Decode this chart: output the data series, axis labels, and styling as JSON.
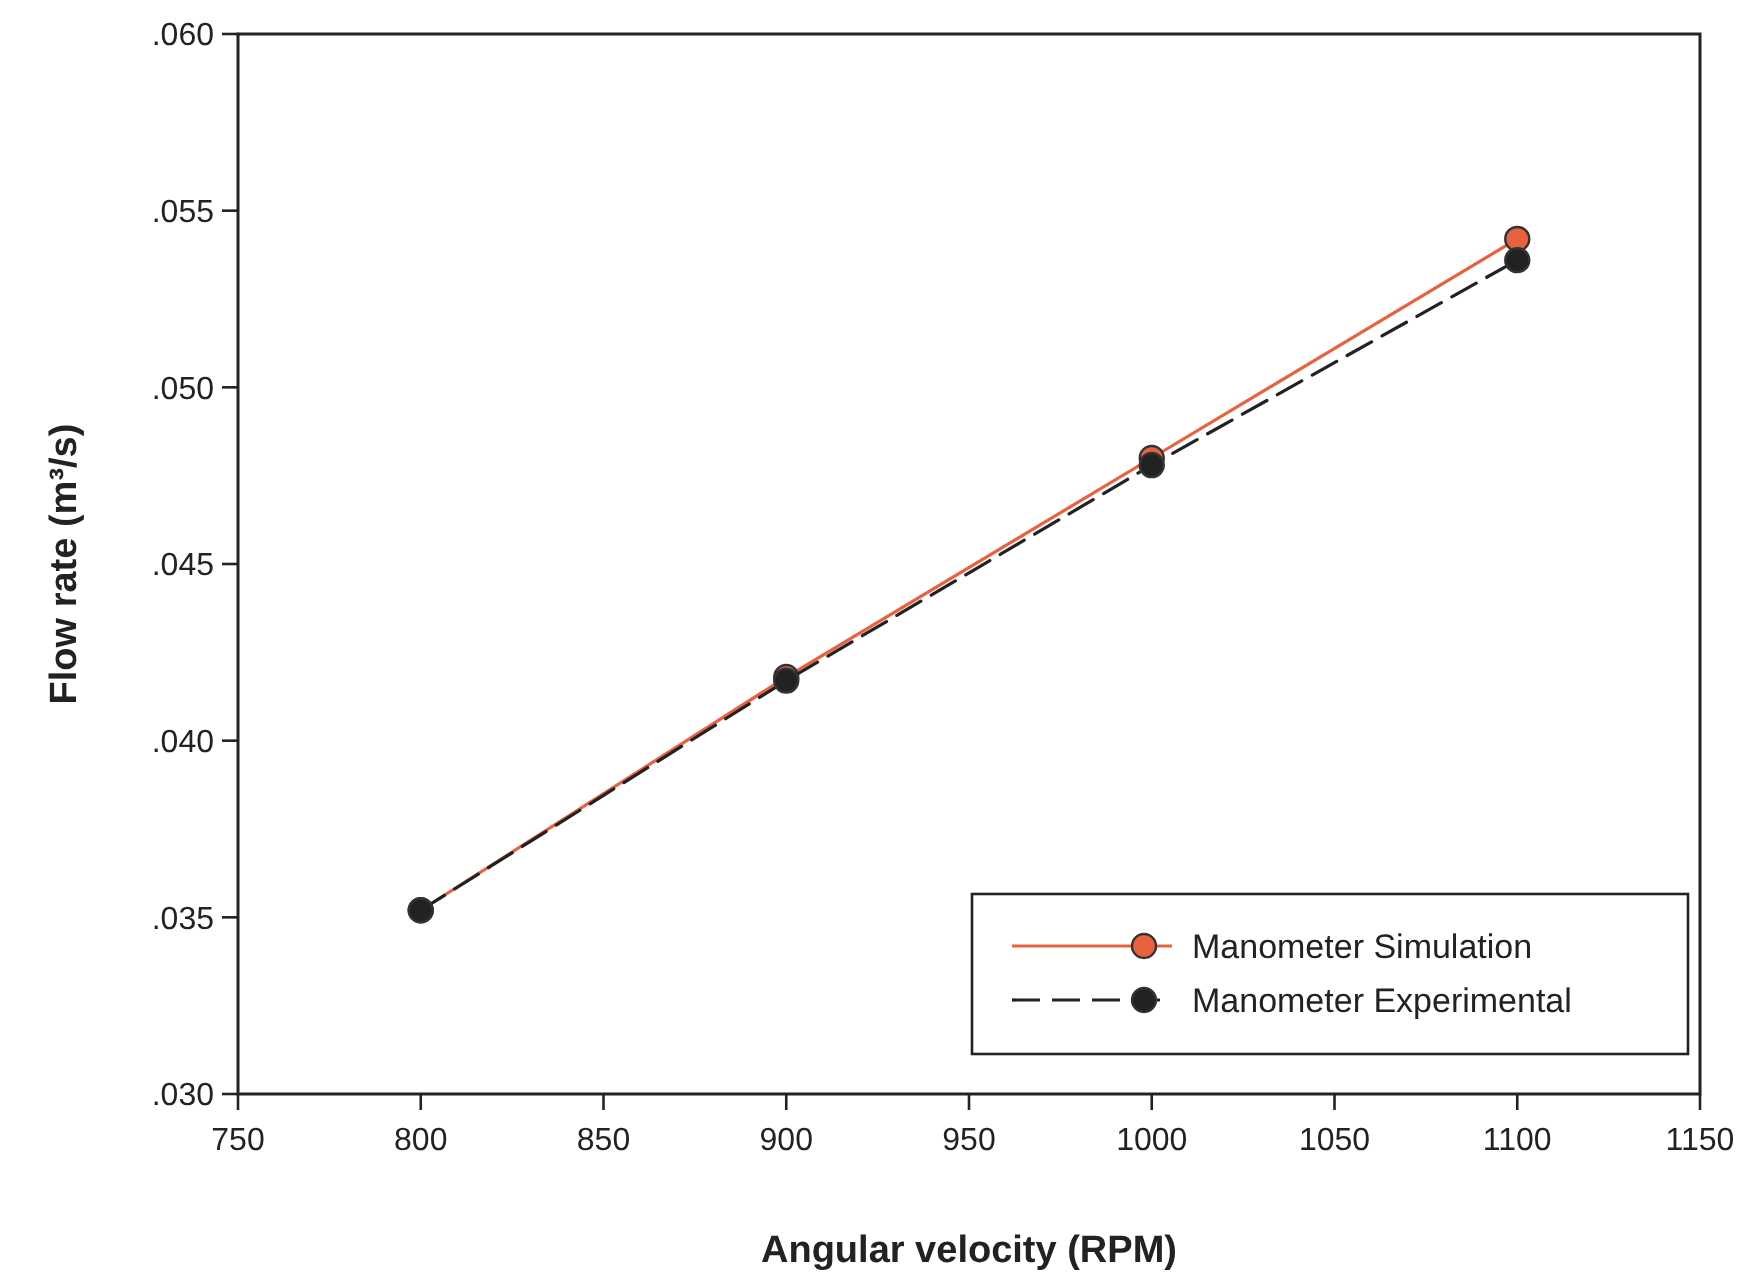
{
  "chart_data": {
    "type": "line",
    "xlabel": "Angular velocity (RPM)",
    "ylabel": "Flow rate (m³/s)",
    "x": [
      800,
      900,
      1000,
      1100
    ],
    "series": [
      {
        "name": "Manometer Simulation",
        "color": "#e8623f",
        "values": [
          0.0352,
          0.0418,
          0.048,
          0.0542
        ],
        "line_style": "solid"
      },
      {
        "name": "Manometer Experimental",
        "color": "#222222",
        "values": [
          0.0352,
          0.0417,
          0.0478,
          0.0536
        ],
        "line_style": "dashed"
      }
    ],
    "xlim": [
      750,
      1150
    ],
    "xticks": [
      750,
      800,
      850,
      900,
      950,
      1000,
      1050,
      1100,
      1150
    ],
    "ylim": [
      0.03,
      0.06
    ],
    "yticks": [
      {
        "value": 0.03,
        "label": ".030"
      },
      {
        "value": 0.035,
        "label": ".035"
      },
      {
        "value": 0.04,
        "label": ".040"
      },
      {
        "value": 0.045,
        "label": ".045"
      },
      {
        "value": 0.05,
        "label": ".050"
      },
      {
        "value": 0.055,
        "label": ".055"
      },
      {
        "value": 0.06,
        "label": ".060"
      }
    ],
    "marker": "circle",
    "legend": "bottom right",
    "grid": false
  }
}
